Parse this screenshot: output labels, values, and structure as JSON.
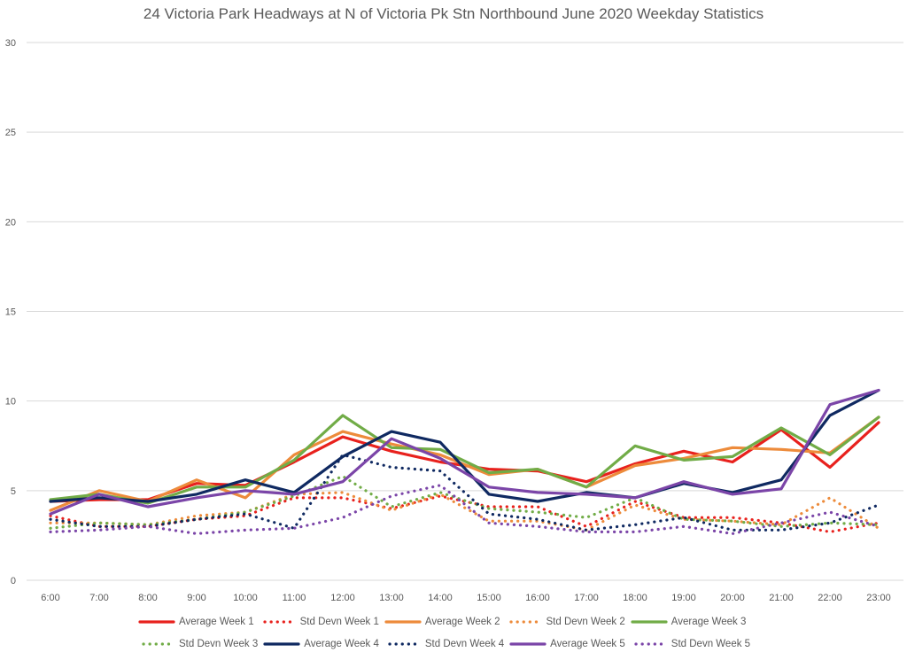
{
  "chart_data": {
    "type": "line",
    "title": "24 Victoria Park Headways at N of Victoria Pk Stn Northbound June 2020 Weekday Statistics",
    "xlabel": "",
    "ylabel": "",
    "ylim": [
      0,
      30
    ],
    "yticks": [
      0,
      5,
      10,
      15,
      20,
      25,
      30
    ],
    "grid": true,
    "legend_position": "bottom",
    "categories": [
      "6:00",
      "7:00",
      "8:00",
      "9:00",
      "10:00",
      "11:00",
      "12:00",
      "13:00",
      "14:00",
      "15:00",
      "16:00",
      "17:00",
      "18:00",
      "19:00",
      "20:00",
      "21:00",
      "22:00",
      "23:00"
    ],
    "series": [
      {
        "name": "Average Week 1",
        "color": "#e8211d",
        "style": "solid",
        "values": [
          4.4,
          4.5,
          4.5,
          5.4,
          5.3,
          6.6,
          8.0,
          7.2,
          6.6,
          6.2,
          6.1,
          5.5,
          6.5,
          7.2,
          6.6,
          8.4,
          6.3,
          8.8
        ]
      },
      {
        "name": "Std Devn Week 1",
        "color": "#e8211d",
        "style": "dotted",
        "values": [
          3.6,
          3.0,
          3.0,
          3.4,
          3.6,
          4.6,
          4.6,
          4.0,
          4.7,
          4.1,
          4.1,
          3.0,
          4.4,
          3.5,
          3.5,
          3.2,
          2.7,
          3.2
        ]
      },
      {
        "name": "Average Week 2",
        "color": "#ed8b3b",
        "style": "solid",
        "values": [
          3.9,
          5.0,
          4.4,
          5.6,
          4.6,
          7.0,
          8.3,
          7.6,
          7.0,
          5.9,
          6.2,
          5.2,
          6.4,
          6.8,
          7.4,
          7.3,
          7.1,
          9.1
        ]
      },
      {
        "name": "Std Devn Week 2",
        "color": "#ed8b3b",
        "style": "dotted",
        "values": [
          3.2,
          3.2,
          3.1,
          3.6,
          3.8,
          4.8,
          4.9,
          3.9,
          4.8,
          3.3,
          3.3,
          2.8,
          4.2,
          3.4,
          3.3,
          3.1,
          4.6,
          2.9
        ]
      },
      {
        "name": "Average Week 3",
        "color": "#71ac47",
        "style": "solid",
        "values": [
          4.5,
          4.8,
          4.3,
          5.2,
          5.2,
          6.7,
          9.2,
          7.4,
          7.3,
          6.0,
          6.2,
          5.2,
          7.5,
          6.7,
          6.9,
          8.5,
          7.0,
          9.1
        ]
      },
      {
        "name": "Std Devn Week 3",
        "color": "#71ac47",
        "style": "dotted",
        "values": [
          2.9,
          3.2,
          3.1,
          3.4,
          3.8,
          4.7,
          5.8,
          4.1,
          4.9,
          4.0,
          3.8,
          3.5,
          4.6,
          3.4,
          3.3,
          3.0,
          3.2,
          3.1
        ]
      },
      {
        "name": "Average Week 4",
        "color": "#0f2961",
        "style": "solid",
        "values": [
          4.4,
          4.6,
          4.4,
          4.8,
          5.6,
          4.9,
          6.9,
          8.3,
          7.7,
          4.8,
          4.4,
          4.9,
          4.6,
          5.4,
          4.9,
          5.6,
          9.2,
          10.6
        ]
      },
      {
        "name": "Std Devn Week 4",
        "color": "#0f2961",
        "style": "dotted",
        "values": [
          3.4,
          3.0,
          3.0,
          3.4,
          3.7,
          2.9,
          7.0,
          6.3,
          6.1,
          3.7,
          3.4,
          2.8,
          3.1,
          3.5,
          2.8,
          2.8,
          3.2,
          4.2
        ]
      },
      {
        "name": "Average Week 5",
        "color": "#7b45a8",
        "style": "solid",
        "values": [
          3.7,
          4.8,
          4.1,
          4.6,
          5.0,
          4.8,
          5.5,
          7.9,
          6.8,
          5.2,
          4.9,
          4.8,
          4.6,
          5.5,
          4.8,
          5.1,
          9.8,
          10.6
        ]
      },
      {
        "name": "Std Devn Week 5",
        "color": "#7b45a8",
        "style": "dotted",
        "values": [
          2.7,
          2.8,
          3.0,
          2.6,
          2.8,
          2.9,
          3.5,
          4.7,
          5.3,
          3.2,
          3.0,
          2.7,
          2.7,
          3.0,
          2.6,
          3.2,
          3.8,
          3.0
        ]
      }
    ]
  }
}
